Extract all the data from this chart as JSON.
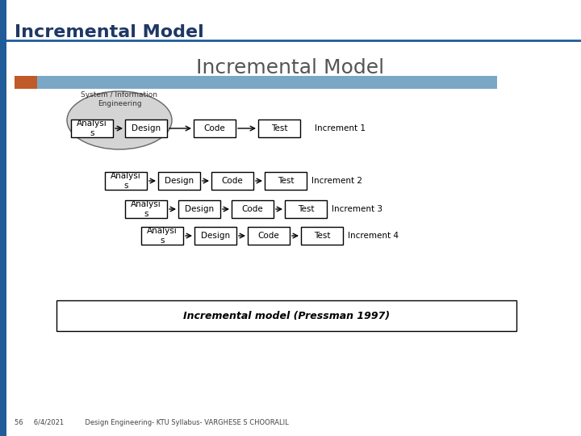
{
  "title": "Incremental Model",
  "subtitle": "Incremental Model",
  "slide_bg": "#ffffff",
  "title_color": "#1F3864",
  "title_fontsize": 16,
  "subtitle_color": "#555555",
  "subtitle_fontsize": 18,
  "left_bar_color": "#1F5C99",
  "orange_rect_color": "#C05A28",
  "blue_bar_color": "#7BA7C7",
  "footer_text": "56     6/4/2021          Design Engineering- KTU Syllabus- VARGHESE S CHOORALIL",
  "caption": "Incremental model (Pressman 1997)",
  "increments": [
    "Increment 1",
    "Increment 2",
    "Increment 3",
    "Increment 4"
  ],
  "steps": [
    "Analysi\ns",
    "Design",
    "Code",
    "Test"
  ],
  "box_color": "#ffffff",
  "box_edge": "#000000",
  "arrow_color": "#000000",
  "ellipse_fill": "#d4d4d4",
  "ellipse_edge": "#666666"
}
